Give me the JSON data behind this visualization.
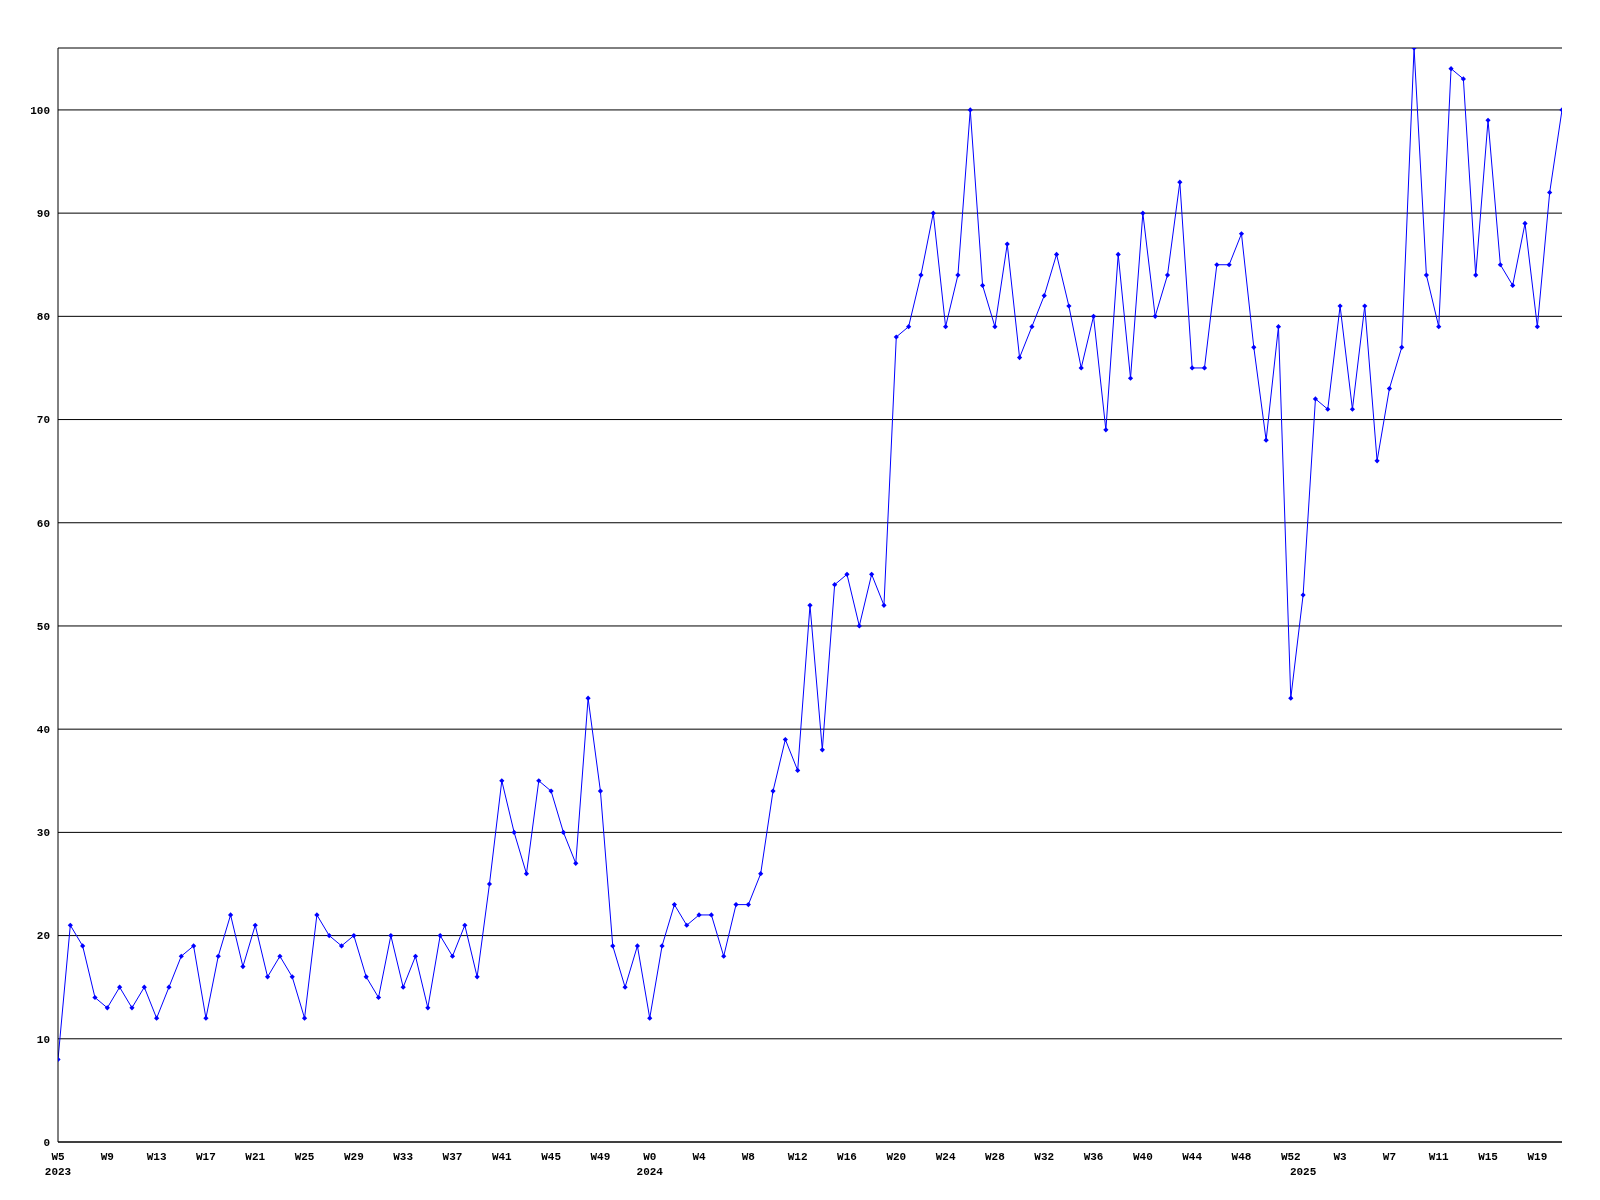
{
  "chart_data": {
    "type": "line",
    "categories": [
      "W5\n2023",
      null,
      null,
      null,
      "W9",
      null,
      null,
      null,
      "W13",
      null,
      null,
      null,
      "W17",
      null,
      null,
      null,
      "W21",
      null,
      null,
      null,
      "W25",
      null,
      null,
      null,
      "W29",
      null,
      null,
      null,
      "W33",
      null,
      null,
      null,
      "W37",
      null,
      null,
      null,
      "W41",
      null,
      null,
      null,
      "W45",
      null,
      null,
      null,
      "W49",
      null,
      null,
      null,
      "W0\n2024",
      null,
      null,
      null,
      "W4",
      null,
      null,
      null,
      "W8",
      null,
      null,
      null,
      "W12",
      null,
      null,
      null,
      "W16",
      null,
      null,
      null,
      "W20",
      null,
      null,
      null,
      "W24",
      null,
      null,
      null,
      "W28",
      null,
      null,
      null,
      "W32",
      null,
      null,
      null,
      "W36",
      null,
      null,
      null,
      "W40",
      null,
      null,
      null,
      "W44",
      null,
      null,
      null,
      "W48",
      null,
      null,
      null,
      "W52",
      "\n2025",
      null,
      null,
      "W3",
      null,
      null,
      null,
      "W7",
      null,
      null,
      null,
      "W11",
      null,
      null,
      null,
      "W15",
      null,
      null,
      null,
      "W19",
      null,
      null
    ],
    "series": [
      {
        "color": "#0000ff",
        "values": [
          8,
          21,
          19,
          14,
          13,
          15,
          13,
          15,
          12,
          15,
          18,
          19,
          12,
          18,
          22,
          17,
          21,
          16,
          18,
          16,
          12,
          22,
          20,
          19,
          20,
          16,
          14,
          20,
          15,
          18,
          13,
          20,
          18,
          21,
          16,
          25,
          35,
          30,
          26,
          35,
          34,
          30,
          27,
          43,
          34,
          19,
          15,
          19,
          12,
          19,
          23,
          21,
          22,
          22,
          18,
          23,
          23,
          26,
          34,
          39,
          36,
          52,
          38,
          54,
          55,
          50,
          55,
          52,
          78,
          79,
          84,
          90,
          79,
          84,
          100,
          83,
          79,
          87,
          76,
          79,
          82,
          86,
          81,
          75,
          80,
          69,
          86,
          74,
          90,
          80,
          84,
          93,
          75,
          75,
          85,
          85,
          88,
          77,
          68,
          79,
          43,
          53,
          72,
          71,
          81,
          71,
          81,
          66,
          73,
          77,
          106,
          84,
          79,
          104,
          103,
          84,
          99,
          85,
          83,
          89,
          79,
          92,
          100
        ]
      }
    ],
    "ylim": [
      0,
      106
    ],
    "yticks": [
      0,
      10,
      20,
      30,
      40,
      50,
      60,
      70,
      80,
      90,
      100
    ],
    "grid": "y",
    "marker": "diamond",
    "line_style": "solid",
    "legend": false
  }
}
